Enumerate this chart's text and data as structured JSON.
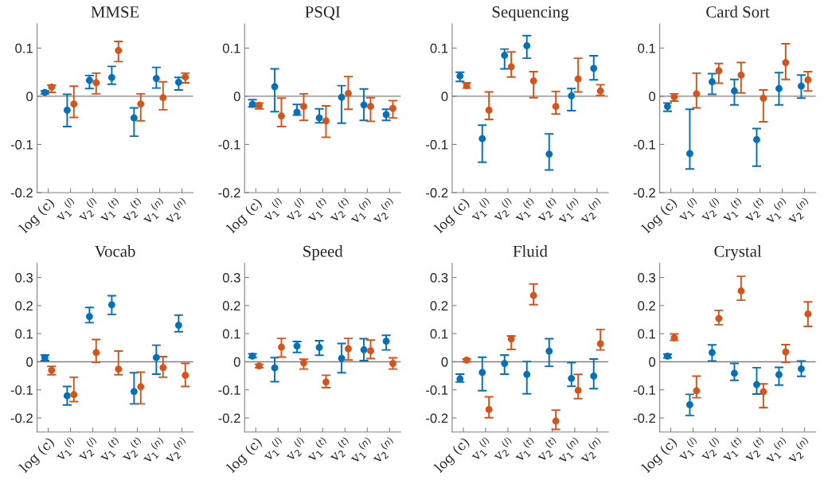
{
  "chart_data": [
    {
      "type": "scatter",
      "title": "MMSE",
      "categories": [
        "log (c)",
        "v$_{1}$$^{(l)}$",
        "v$_{2}$$^{(l)}$",
        "v$_{1}$$^{(t)}$",
        "v$_{2}$$^{(t)}$",
        "v$_{1}$$^{(n)}$",
        "v$_{2}$$^{(n)}$"
      ],
      "marker": "circle",
      "ylim": [
        -0.2,
        0.15
      ],
      "yticks": [
        -0.2,
        -0.1,
        0,
        0.1
      ],
      "ref_lines": [
        {
          "axis": "y",
          "value": 0,
          "color": "#808080"
        }
      ],
      "series": [
        {
          "color": "#0072bd",
          "values": [
            0.008,
            -0.029,
            0.033,
            0.039,
            -0.045,
            0.037,
            0.029
          ],
          "errors": [
            [
              0.005,
              0.011
            ],
            [
              -0.063,
              0.004
            ],
            [
              0.016,
              0.043
            ],
            [
              0.025,
              0.062
            ],
            [
              -0.083,
              -0.024
            ],
            [
              0.017,
              0.06
            ],
            [
              0.013,
              0.039
            ]
          ]
        },
        {
          "color": "#d95319",
          "values": [
            0.019,
            -0.016,
            0.028,
            0.095,
            -0.016,
            -0.003,
            0.04
          ],
          "errors": [
            [
              0.008,
              0.023
            ],
            [
              -0.044,
              0.021
            ],
            [
              0.005,
              0.048
            ],
            [
              0.072,
              0.114
            ],
            [
              -0.051,
              0.005
            ],
            [
              -0.028,
              0.03
            ],
            [
              0.028,
              0.048
            ]
          ]
        }
      ]
    },
    {
      "type": "scatter",
      "title": "PSQI",
      "categories": [
        "log (c)",
        "v$_{1}$$^{(l)}$",
        "v$_{2}$$^{(l)}$",
        "v$_{1}$$^{(t)}$",
        "v$_{2}$$^{(t)}$",
        "v$_{1}$$^{(n)}$",
        "v$_{2}$$^{(n)}$"
      ],
      "marker": "circle",
      "ylim": [
        -0.2,
        0.15
      ],
      "yticks": [
        -0.2,
        -0.1,
        0,
        0.1
      ],
      "ref_lines": [
        {
          "axis": "y",
          "value": 0,
          "color": "#808080"
        }
      ],
      "series": [
        {
          "color": "#0072bd",
          "values": [
            -0.017,
            0.02,
            -0.033,
            -0.045,
            -0.002,
            -0.018,
            -0.038
          ],
          "errors": [
            [
              -0.022,
              -0.007
            ],
            [
              -0.032,
              0.057
            ],
            [
              -0.039,
              -0.017
            ],
            [
              -0.055,
              -0.026
            ],
            [
              -0.056,
              0.022
            ],
            [
              -0.05,
              0.015
            ],
            [
              -0.05,
              -0.027
            ]
          ]
        },
        {
          "color": "#d95319",
          "values": [
            -0.019,
            -0.041,
            -0.021,
            -0.051,
            0.006,
            -0.021,
            -0.025
          ],
          "errors": [
            [
              -0.026,
              -0.014
            ],
            [
              -0.063,
              -0.004
            ],
            [
              -0.05,
              0.005
            ],
            [
              -0.085,
              -0.02
            ],
            [
              -0.027,
              0.041
            ],
            [
              -0.052,
              -0.003
            ],
            [
              -0.045,
              -0.009
            ]
          ]
        }
      ]
    },
    {
      "type": "scatter",
      "title": "Sequencing",
      "categories": [
        "log (c)",
        "v$_{1}$$^{(l)}$",
        "v$_{2}$$^{(l)}$",
        "v$_{1}$$^{(t)}$",
        "v$_{2}$$^{(t)}$",
        "v$_{1}$$^{(n)}$",
        "v$_{2}$$^{(n)}$"
      ],
      "marker": "circle",
      "ylim": [
        -0.2,
        0.15
      ],
      "yticks": [
        -0.2,
        -0.1,
        0,
        0.1
      ],
      "ref_lines": [
        {
          "axis": "y",
          "value": 0,
          "color": "#808080"
        }
      ],
      "series": [
        {
          "color": "#0072bd",
          "values": [
            0.042,
            -0.088,
            0.085,
            0.105,
            -0.12,
            0.001,
            0.058
          ],
          "errors": [
            [
              0.031,
              0.05
            ],
            [
              -0.137,
              -0.06
            ],
            [
              0.057,
              0.098
            ],
            [
              0.079,
              0.126
            ],
            [
              -0.153,
              -0.078
            ],
            [
              -0.03,
              0.016
            ],
            [
              0.034,
              0.084
            ]
          ]
        },
        {
          "color": "#d95319",
          "values": [
            0.022,
            -0.029,
            0.061,
            0.032,
            -0.021,
            0.036,
            0.011
          ],
          "errors": [
            [
              0.017,
              0.028
            ],
            [
              -0.048,
              0.009
            ],
            [
              0.04,
              0.092
            ],
            [
              -0.003,
              0.051
            ],
            [
              -0.037,
              0.01
            ],
            [
              0.009,
              0.079
            ],
            [
              0.002,
              0.024
            ]
          ]
        }
      ]
    },
    {
      "type": "scatter",
      "title": "Card Sort",
      "categories": [
        "log (c)",
        "v$_{1}$$^{(l)}$",
        "v$_{2}$$^{(l)}$",
        "v$_{1}$$^{(t)}$",
        "v$_{2}$$^{(t)}$",
        "v$_{1}$$^{(n)}$",
        "v$_{2}$$^{(n)}$"
      ],
      "marker": "circle",
      "ylim": [
        -0.2,
        0.15
      ],
      "yticks": [
        -0.2,
        -0.1,
        0,
        0.1
      ],
      "ref_lines": [
        {
          "axis": "y",
          "value": 0,
          "color": "#808080"
        }
      ],
      "series": [
        {
          "color": "#0072bd",
          "values": [
            -0.021,
            -0.119,
            0.03,
            0.011,
            -0.09,
            0.016,
            0.021
          ],
          "errors": [
            [
              -0.031,
              -0.014
            ],
            [
              -0.151,
              -0.027
            ],
            [
              0.004,
              0.047
            ],
            [
              -0.018,
              0.035
            ],
            [
              -0.145,
              -0.067
            ],
            [
              -0.018,
              0.049
            ],
            [
              -0.004,
              0.044
            ]
          ]
        },
        {
          "color": "#d95319",
          "values": [
            -0.001,
            0.005,
            0.053,
            0.044,
            -0.004,
            0.07,
            0.034
          ],
          "errors": [
            [
              -0.01,
              0.005
            ],
            [
              -0.024,
              0.048
            ],
            [
              0.027,
              0.068
            ],
            [
              0.007,
              0.07
            ],
            [
              -0.053,
              0.013
            ],
            [
              0.035,
              0.109
            ],
            [
              0.011,
              0.051
            ]
          ]
        }
      ]
    },
    {
      "type": "scatter",
      "title": "Vocab",
      "categories": [
        "log (c)",
        "v$_{1}$$^{(l)}$",
        "v$_{2}$$^{(l)}$",
        "v$_{1}$$^{(t)}$",
        "v$_{2}$$^{(t)}$",
        "v$_{1}$$^{(n)}$",
        "v$_{2}$$^{(n)}$"
      ],
      "marker": "circle",
      "ylim": [
        -0.25,
        0.35
      ],
      "yticks": [
        -0.2,
        -0.1,
        0,
        0.1,
        0.2,
        0.3
      ],
      "ref_lines": [
        {
          "axis": "y",
          "value": 0,
          "color": "#808080"
        }
      ],
      "series": [
        {
          "color": "#0072bd",
          "values": [
            0.015,
            -0.121,
            0.161,
            0.203,
            -0.106,
            0.015,
            0.13
          ],
          "errors": [
            [
              0.004,
              0.024
            ],
            [
              -0.154,
              -0.088
            ],
            [
              0.139,
              0.193
            ],
            [
              0.168,
              0.235
            ],
            [
              -0.15,
              -0.039
            ],
            [
              -0.044,
              0.059
            ],
            [
              0.107,
              0.166
            ]
          ]
        },
        {
          "color": "#d95319",
          "values": [
            -0.03,
            -0.117,
            0.033,
            -0.026,
            -0.089,
            -0.021,
            -0.048
          ],
          "errors": [
            [
              -0.046,
              -0.016
            ],
            [
              -0.142,
              -0.055
            ],
            [
              -0.002,
              0.079
            ],
            [
              -0.046,
              0.038
            ],
            [
              -0.15,
              -0.037
            ],
            [
              -0.055,
              0.018
            ],
            [
              -0.088,
              -0.006
            ]
          ]
        }
      ]
    },
    {
      "type": "scatter",
      "title": "Speed",
      "categories": [
        "log (c)",
        "v$_{1}$$^{(l)}$",
        "v$_{2}$$^{(l)}$",
        "v$_{1}$$^{(t)}$",
        "v$_{2}$$^{(t)}$",
        "v$_{1}$$^{(n)}$",
        "v$_{2}$$^{(n)}$"
      ],
      "marker": "circle",
      "ylim": [
        -0.25,
        0.35
      ],
      "yticks": [
        -0.2,
        -0.1,
        0,
        0.1,
        0.2,
        0.3
      ],
      "ref_lines": [
        {
          "axis": "y",
          "value": 0,
          "color": "#808080"
        }
      ],
      "series": [
        {
          "color": "#0072bd",
          "values": [
            0.02,
            -0.022,
            0.056,
            0.051,
            0.012,
            0.043,
            0.073
          ],
          "errors": [
            [
              0.015,
              0.028
            ],
            [
              -0.071,
              0.015
            ],
            [
              0.033,
              0.072
            ],
            [
              0.023,
              0.075
            ],
            [
              -0.039,
              0.065
            ],
            [
              0.004,
              0.082
            ],
            [
              0.042,
              0.094
            ]
          ]
        },
        {
          "color": "#d95319",
          "values": [
            -0.015,
            0.052,
            -0.004,
            -0.072,
            0.046,
            0.039,
            -0.006
          ],
          "errors": [
            [
              -0.021,
              -0.009
            ],
            [
              0.017,
              0.083
            ],
            [
              -0.026,
              0.009
            ],
            [
              -0.092,
              -0.048
            ],
            [
              0.006,
              0.083
            ],
            [
              0.011,
              0.077
            ],
            [
              -0.026,
              0.014
            ]
          ]
        }
      ]
    },
    {
      "type": "scatter",
      "title": "Fluid",
      "categories": [
        "log (c)",
        "v$_{1}$$^{(l)}$",
        "v$_{2}$$^{(l)}$",
        "v$_{1}$$^{(t)}$",
        "v$_{2}$$^{(t)}$",
        "v$_{1}$$^{(n)}$",
        "v$_{2}$$^{(n)}$"
      ],
      "marker": "circle",
      "ylim": [
        -0.25,
        0.35
      ],
      "yticks": [
        -0.2,
        -0.1,
        0,
        0.1,
        0.2,
        0.3
      ],
      "ref_lines": [
        {
          "axis": "y",
          "value": 0,
          "color": "#808080"
        }
      ],
      "series": [
        {
          "color": "#0072bd",
          "values": [
            -0.061,
            -0.038,
            -0.006,
            -0.045,
            0.038,
            -0.059,
            -0.051
          ],
          "errors": [
            [
              -0.072,
              -0.044
            ],
            [
              -0.103,
              0.016
            ],
            [
              -0.044,
              0.024
            ],
            [
              -0.114,
              0.001
            ],
            [
              -0.016,
              0.082
            ],
            [
              -0.087,
              -0.003
            ],
            [
              -0.096,
              0.01
            ]
          ]
        },
        {
          "color": "#d95319",
          "values": [
            0.006,
            -0.17,
            0.081,
            0.236,
            -0.211,
            -0.102,
            0.064
          ],
          "errors": [
            [
              0.0,
              0.01
            ],
            [
              -0.199,
              -0.125
            ],
            [
              0.044,
              0.092
            ],
            [
              0.203,
              0.277
            ],
            [
              -0.241,
              -0.172
            ],
            [
              -0.131,
              -0.045
            ],
            [
              0.042,
              0.115
            ]
          ]
        }
      ]
    },
    {
      "type": "scatter",
      "title": "Crystal",
      "categories": [
        "log (c)",
        "v$_{1}$$^{(l)}$",
        "v$_{2}$$^{(l)}$",
        "v$_{1}$$^{(t)}$",
        "v$_{2}$$^{(t)}$",
        "v$_{1}$$^{(n)}$",
        "v$_{2}$$^{(n)}$"
      ],
      "marker": "circle",
      "ylim": [
        -0.25,
        0.35
      ],
      "yticks": [
        -0.2,
        -0.1,
        0,
        0.1,
        0.2,
        0.3
      ],
      "ref_lines": [
        {
          "axis": "y",
          "value": 0,
          "color": "#808080"
        }
      ],
      "series": [
        {
          "color": "#0072bd",
          "values": [
            0.02,
            -0.153,
            0.033,
            -0.041,
            -0.081,
            -0.046,
            -0.025
          ],
          "errors": [
            [
              0.014,
              0.027
            ],
            [
              -0.191,
              -0.116
            ],
            [
              0.003,
              0.06
            ],
            [
              -0.066,
              -0.006
            ],
            [
              -0.115,
              -0.021
            ],
            [
              -0.083,
              -0.02
            ],
            [
              -0.052,
              0.003
            ]
          ]
        },
        {
          "color": "#d95319",
          "values": [
            0.085,
            -0.103,
            0.154,
            0.252,
            -0.107,
            0.035,
            0.17
          ],
          "errors": [
            [
              0.076,
              0.099
            ],
            [
              -0.128,
              -0.051
            ],
            [
              0.132,
              0.183
            ],
            [
              0.219,
              0.304
            ],
            [
              -0.163,
              -0.079
            ],
            [
              -0.002,
              0.061
            ],
            [
              0.126,
              0.213
            ]
          ]
        }
      ]
    }
  ]
}
